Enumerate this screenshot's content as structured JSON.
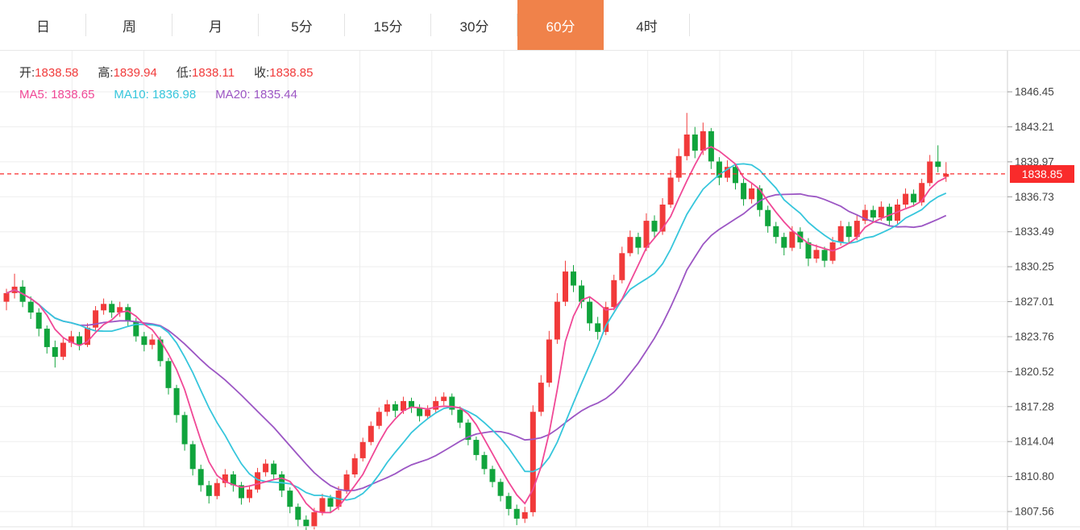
{
  "tabs": {
    "items": [
      {
        "label": "日"
      },
      {
        "label": "周"
      },
      {
        "label": "月"
      },
      {
        "label": "5分"
      },
      {
        "label": "15分"
      },
      {
        "label": "30分"
      },
      {
        "label": "60分"
      },
      {
        "label": "4时"
      }
    ],
    "active_index": 6,
    "active_color": "#f0824a"
  },
  "legend": {
    "open_label": "开:",
    "open_value": "1838.58",
    "high_label": "高:",
    "high_value": "1839.94",
    "low_label": "低:",
    "low_value": "1838.11",
    "close_label": "收:",
    "close_value": "1838.85",
    "ma5_label": "MA5:",
    "ma5_value": "1838.65",
    "ma10_label": "MA10:",
    "ma10_value": "1836.98",
    "ma20_label": "MA20:",
    "ma20_value": "1835.44"
  },
  "price_line": {
    "value": "1838.85",
    "color": "#f92b2b"
  },
  "colors": {
    "up": "#f13a3a",
    "down": "#10a43c",
    "ma5": "#f04896",
    "ma10": "#36c6dc",
    "ma20": "#9c56c4",
    "grid": "#ededed",
    "axis": "#cfcfcf",
    "tick": "#999999",
    "label": "#444444"
  },
  "chart_data": {
    "type": "candlestick",
    "title": "",
    "xlabel": "",
    "ylabel": "",
    "ylim": [
      1805.8,
      1850.3
    ],
    "grid": true,
    "current_price": 1838.85,
    "ma_periods": [
      5,
      10,
      20
    ],
    "y_ticks": [
      1846.45,
      1843.21,
      1839.97,
      1836.73,
      1833.49,
      1830.25,
      1827.01,
      1823.76,
      1820.52,
      1817.28,
      1814.04,
      1810.8,
      1807.56
    ],
    "ohlc": [
      [
        1827.0,
        1828.2,
        1826.2,
        1827.8
      ],
      [
        1827.8,
        1829.6,
        1827.3,
        1828.4
      ],
      [
        1828.4,
        1829.0,
        1826.5,
        1827.0
      ],
      [
        1827.0,
        1827.5,
        1825.4,
        1826.0
      ],
      [
        1826.0,
        1826.4,
        1823.8,
        1824.5
      ],
      [
        1824.5,
        1824.8,
        1822.2,
        1822.8
      ],
      [
        1822.8,
        1823.4,
        1820.9,
        1821.9
      ],
      [
        1821.9,
        1823.6,
        1821.6,
        1823.2
      ],
      [
        1823.2,
        1824.3,
        1822.8,
        1823.8
      ],
      [
        1823.8,
        1824.2,
        1822.5,
        1823.0
      ],
      [
        1823.0,
        1825.0,
        1822.8,
        1824.6
      ],
      [
        1824.6,
        1826.6,
        1824.3,
        1826.2
      ],
      [
        1826.2,
        1827.3,
        1825.8,
        1826.8
      ],
      [
        1826.8,
        1827.1,
        1825.5,
        1826.0
      ],
      [
        1826.0,
        1827.0,
        1825.6,
        1826.5
      ],
      [
        1826.5,
        1826.8,
        1824.7,
        1825.2
      ],
      [
        1825.2,
        1825.5,
        1823.3,
        1823.8
      ],
      [
        1823.8,
        1824.2,
        1822.4,
        1823.0
      ],
      [
        1823.0,
        1824.0,
        1822.6,
        1823.5
      ],
      [
        1823.5,
        1823.8,
        1821.0,
        1821.5
      ],
      [
        1821.5,
        1821.8,
        1818.4,
        1819.0
      ],
      [
        1819.0,
        1819.3,
        1815.8,
        1816.5
      ],
      [
        1816.5,
        1816.8,
        1813.2,
        1813.8
      ],
      [
        1813.8,
        1814.1,
        1810.9,
        1811.5
      ],
      [
        1811.5,
        1811.9,
        1809.4,
        1810.0
      ],
      [
        1810.0,
        1810.4,
        1808.3,
        1809.0
      ],
      [
        1809.0,
        1810.6,
        1808.7,
        1810.2
      ],
      [
        1810.2,
        1811.5,
        1809.8,
        1811.0
      ],
      [
        1811.0,
        1811.3,
        1809.4,
        1810.0
      ],
      [
        1810.0,
        1810.3,
        1808.2,
        1808.8
      ],
      [
        1808.8,
        1810.0,
        1808.4,
        1809.6
      ],
      [
        1809.6,
        1811.6,
        1809.3,
        1811.2
      ],
      [
        1811.2,
        1812.4,
        1810.8,
        1812.0
      ],
      [
        1812.0,
        1812.3,
        1810.5,
        1811.0
      ],
      [
        1811.0,
        1811.3,
        1808.9,
        1809.5
      ],
      [
        1809.5,
        1809.8,
        1807.4,
        1808.0
      ],
      [
        1808.0,
        1808.3,
        1806.2,
        1806.8
      ],
      [
        1806.8,
        1807.2,
        1805.6,
        1806.2
      ],
      [
        1806.2,
        1807.9,
        1805.9,
        1807.5
      ],
      [
        1807.5,
        1809.2,
        1807.2,
        1808.8
      ],
      [
        1808.8,
        1809.1,
        1807.5,
        1808.0
      ],
      [
        1808.0,
        1809.9,
        1807.7,
        1809.5
      ],
      [
        1809.5,
        1811.4,
        1809.2,
        1811.0
      ],
      [
        1811.0,
        1812.9,
        1810.7,
        1812.5
      ],
      [
        1812.5,
        1814.4,
        1812.2,
        1814.0
      ],
      [
        1814.0,
        1815.9,
        1813.7,
        1815.5
      ],
      [
        1815.5,
        1817.2,
        1815.2,
        1816.8
      ],
      [
        1816.8,
        1817.9,
        1816.4,
        1817.5
      ],
      [
        1817.5,
        1817.8,
        1816.3,
        1816.9
      ],
      [
        1816.9,
        1818.2,
        1816.6,
        1817.8
      ],
      [
        1817.8,
        1818.1,
        1816.7,
        1817.2
      ],
      [
        1817.2,
        1817.5,
        1815.9,
        1816.4
      ],
      [
        1816.4,
        1817.4,
        1816.1,
        1817.0
      ],
      [
        1817.0,
        1818.2,
        1816.7,
        1817.8
      ],
      [
        1817.8,
        1818.6,
        1817.4,
        1818.2
      ],
      [
        1818.2,
        1818.5,
        1816.5,
        1817.0
      ],
      [
        1817.0,
        1817.3,
        1815.3,
        1815.8
      ],
      [
        1815.8,
        1816.1,
        1813.7,
        1814.2
      ],
      [
        1814.2,
        1814.5,
        1812.3,
        1812.8
      ],
      [
        1812.8,
        1813.1,
        1811.0,
        1811.5
      ],
      [
        1811.5,
        1811.8,
        1809.8,
        1810.3
      ],
      [
        1810.3,
        1810.6,
        1808.5,
        1809.0
      ],
      [
        1809.0,
        1809.3,
        1807.2,
        1807.8
      ],
      [
        1807.8,
        1808.2,
        1806.3,
        1806.9
      ],
      [
        1806.9,
        1808.0,
        1806.5,
        1807.5
      ],
      [
        1807.5,
        1817.4,
        1807.1,
        1816.8
      ],
      [
        1816.8,
        1820.2,
        1816.4,
        1819.5
      ],
      [
        1819.5,
        1824.3,
        1819.1,
        1823.5
      ],
      [
        1823.5,
        1827.8,
        1823.1,
        1827.0
      ],
      [
        1827.0,
        1830.8,
        1826.6,
        1829.8
      ],
      [
        1829.8,
        1830.4,
        1827.9,
        1828.5
      ],
      [
        1828.5,
        1829.0,
        1826.4,
        1827.0
      ],
      [
        1827.0,
        1827.4,
        1824.3,
        1825.0
      ],
      [
        1825.0,
        1825.6,
        1823.5,
        1824.2
      ],
      [
        1824.2,
        1827.0,
        1823.9,
        1826.5
      ],
      [
        1826.5,
        1829.5,
        1826.2,
        1829.0
      ],
      [
        1829.0,
        1832.1,
        1828.7,
        1831.5
      ],
      [
        1831.5,
        1833.6,
        1831.2,
        1833.0
      ],
      [
        1833.0,
        1833.4,
        1831.4,
        1832.0
      ],
      [
        1832.0,
        1835.2,
        1831.7,
        1834.5
      ],
      [
        1834.5,
        1835.0,
        1832.9,
        1833.5
      ],
      [
        1833.5,
        1836.6,
        1833.2,
        1836.0
      ],
      [
        1836.0,
        1839.2,
        1835.7,
        1838.5
      ],
      [
        1838.5,
        1841.2,
        1838.1,
        1840.5
      ],
      [
        1840.5,
        1844.5,
        1840.1,
        1842.5
      ],
      [
        1842.5,
        1843.2,
        1840.3,
        1841.0
      ],
      [
        1841.0,
        1843.6,
        1840.6,
        1842.8
      ],
      [
        1842.8,
        1843.1,
        1839.3,
        1840.0
      ],
      [
        1840.0,
        1840.4,
        1837.8,
        1838.5
      ],
      [
        1838.5,
        1840.1,
        1838.1,
        1839.5
      ],
      [
        1839.5,
        1839.8,
        1837.4,
        1838.0
      ],
      [
        1838.0,
        1838.4,
        1835.9,
        1836.5
      ],
      [
        1836.5,
        1838.0,
        1836.1,
        1837.5
      ],
      [
        1837.5,
        1837.8,
        1834.9,
        1835.5
      ],
      [
        1835.5,
        1835.9,
        1833.4,
        1834.0
      ],
      [
        1834.0,
        1834.4,
        1832.4,
        1833.0
      ],
      [
        1833.0,
        1833.4,
        1831.3,
        1832.0
      ],
      [
        1832.0,
        1834.0,
        1831.7,
        1833.5
      ],
      [
        1833.5,
        1833.9,
        1831.9,
        1832.5
      ],
      [
        1832.5,
        1832.9,
        1830.3,
        1831.0
      ],
      [
        1831.0,
        1832.3,
        1830.6,
        1831.8
      ],
      [
        1831.8,
        1832.1,
        1830.2,
        1830.8
      ],
      [
        1830.8,
        1833.0,
        1830.5,
        1832.5
      ],
      [
        1832.5,
        1834.5,
        1832.2,
        1834.0
      ],
      [
        1834.0,
        1834.4,
        1832.5,
        1833.0
      ],
      [
        1833.0,
        1835.0,
        1832.7,
        1834.5
      ],
      [
        1834.5,
        1836.0,
        1834.2,
        1835.5
      ],
      [
        1835.5,
        1835.9,
        1834.3,
        1834.8
      ],
      [
        1834.8,
        1836.3,
        1834.5,
        1835.8
      ],
      [
        1835.8,
        1836.1,
        1834.0,
        1834.5
      ],
      [
        1834.5,
        1836.5,
        1834.2,
        1836.0
      ],
      [
        1836.0,
        1837.5,
        1835.7,
        1837.0
      ],
      [
        1837.0,
        1837.4,
        1835.8,
        1836.2
      ],
      [
        1836.2,
        1838.4,
        1835.9,
        1838.0
      ],
      [
        1838.0,
        1840.6,
        1837.7,
        1840.0
      ],
      [
        1840.0,
        1841.5,
        1839.0,
        1839.5
      ],
      [
        1838.58,
        1839.94,
        1838.11,
        1838.85
      ]
    ]
  }
}
